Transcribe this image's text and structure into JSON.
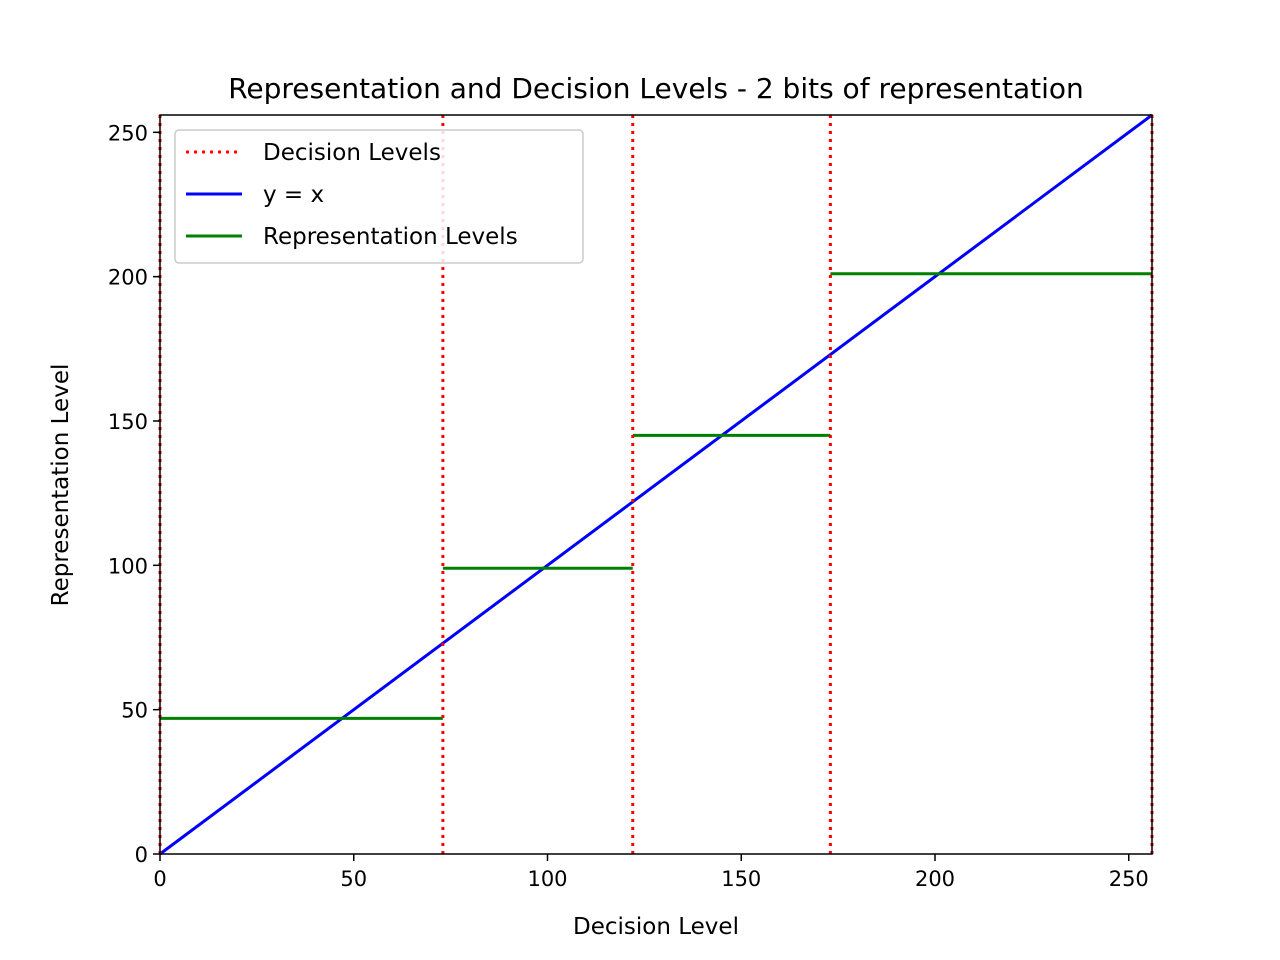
{
  "chart_data": {
    "type": "line",
    "title": "Representation and Decision Levels - 2 bits of representation",
    "xlabel": "Decision Level",
    "ylabel": "Representation Level",
    "xlim": [
      0,
      256
    ],
    "ylim": [
      0,
      256
    ],
    "xticks": [
      0,
      50,
      100,
      150,
      200,
      250
    ],
    "yticks": [
      0,
      50,
      100,
      150,
      200,
      250
    ],
    "grid": false,
    "legend_position": "top-left",
    "legend": [
      {
        "label": "Decision Levels",
        "style": "dotted",
        "color": "#ff0000"
      },
      {
        "label": "y = x",
        "style": "solid",
        "color": "#0000ff"
      },
      {
        "label": "Representation Levels",
        "style": "solid",
        "color": "#008000"
      }
    ],
    "decision_levels": [
      0,
      73,
      122,
      173,
      256
    ],
    "identity_line": {
      "x": [
        0,
        256
      ],
      "y": [
        0,
        256
      ]
    },
    "representation_levels": [
      {
        "x_start": 0,
        "x_end": 73,
        "y": 47
      },
      {
        "x_start": 73,
        "x_end": 122,
        "y": 99
      },
      {
        "x_start": 122,
        "x_end": 173,
        "y": 145
      },
      {
        "x_start": 173,
        "x_end": 256,
        "y": 201
      }
    ]
  }
}
